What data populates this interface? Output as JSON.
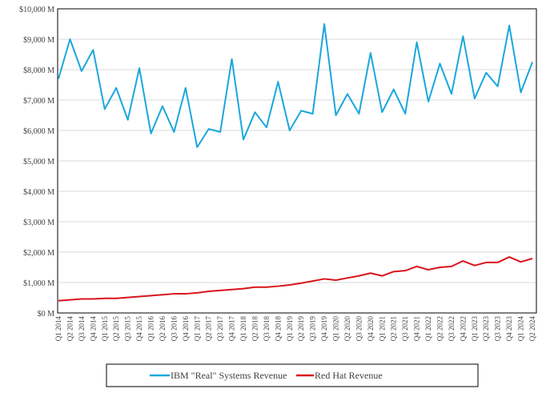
{
  "chart_data": {
    "type": "line",
    "title": "",
    "xlabel": "",
    "ylabel": "",
    "ylim": [
      0,
      10000
    ],
    "y_ticks": [
      "$0 M",
      "$1,000 M",
      "$2,000 M",
      "$3,000 M",
      "$4,000 M",
      "$5,000 M",
      "$6,000 M",
      "$7,000 M",
      "$8,000 M",
      "$9,000 M",
      "$10,000 M"
    ],
    "y_tick_values": [
      0,
      1000,
      2000,
      3000,
      4000,
      5000,
      6000,
      7000,
      8000,
      9000,
      10000
    ],
    "grid": true,
    "legend_placement": "bottom",
    "categories": [
      "Q1 2014",
      "Q2 2014",
      "Q3 2014",
      "Q4 2014",
      "Q1 2015",
      "Q2 2015",
      "Q3 2015",
      "Q4 2015",
      "Q1 2016",
      "Q2 2016",
      "Q3 2016",
      "Q4 2016",
      "Q1 2017",
      "Q2 2017",
      "Q3 2017",
      "Q4 2017",
      "Q1 2018",
      "Q2 2018",
      "Q3 2018",
      "Q4 2018",
      "Q1 2019",
      "Q2 2019",
      "Q3 2019",
      "Q4 2019",
      "Q1 2020",
      "Q2 2020",
      "Q3 2020",
      "Q4 2020",
      "Q1 2021",
      "Q2 2021",
      "Q3 2021",
      "Q4 2021",
      "Q1 2022",
      "Q2 2022",
      "Q3 2022",
      "Q4 2022",
      "Q1 2023",
      "Q2 2023",
      "Q3 2023",
      "Q4 2023",
      "Q1 2024",
      "Q2 2024"
    ],
    "series": [
      {
        "name": "IBM \"Real\" Systems Revenue",
        "color": "#1aa7dc",
        "values": [
          7700,
          9000,
          7950,
          8650,
          6700,
          7400,
          6350,
          8050,
          5900,
          6800,
          5950,
          7400,
          5450,
          6050,
          5950,
          8350,
          5700,
          6600,
          6100,
          7600,
          6000,
          6650,
          6550,
          9500,
          6500,
          7200,
          6550,
          8550,
          6600,
          7350,
          6550,
          8900,
          6950,
          8200,
          7200,
          9100,
          7050,
          7900,
          7450,
          9450,
          7250,
          8250
        ]
      },
      {
        "name": "Red Hat Revenue",
        "color": "#d9141b",
        "values": [
          400,
          430,
          460,
          460,
          480,
          480,
          510,
          540,
          570,
          600,
          630,
          630,
          660,
          710,
          740,
          770,
          800,
          850,
          850,
          880,
          920,
          980,
          1050,
          1120,
          1080,
          1150,
          1220,
          1310,
          1220,
          1360,
          1390,
          1530,
          1420,
          1500,
          1530,
          1710,
          1560,
          1660,
          1660,
          1840,
          1680,
          1790
        ]
      }
    ]
  }
}
